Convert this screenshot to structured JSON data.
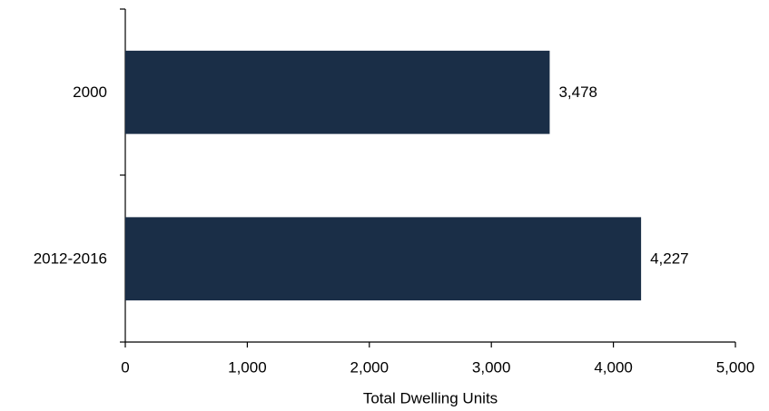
{
  "chart_data": {
    "type": "hbar",
    "categories": [
      "2000",
      "2012-2016"
    ],
    "values": [
      3478,
      4227
    ],
    "value_labels": [
      "3,478",
      "4,227"
    ],
    "color": "#1a2e47",
    "xlabel": "Total Dwelling Units",
    "xlim": [
      0,
      5000
    ],
    "xticks": [
      0,
      {
        "value": 1000,
        "label": "1,000"
      },
      {
        "value": 2000,
        "label": "2,000"
      },
      {
        "value": 3000,
        "label": "3,000"
      },
      {
        "value": 4000,
        "label": "4,000"
      },
      {
        "value": 5000,
        "label": "5,000"
      }
    ],
    "grid": false
  }
}
